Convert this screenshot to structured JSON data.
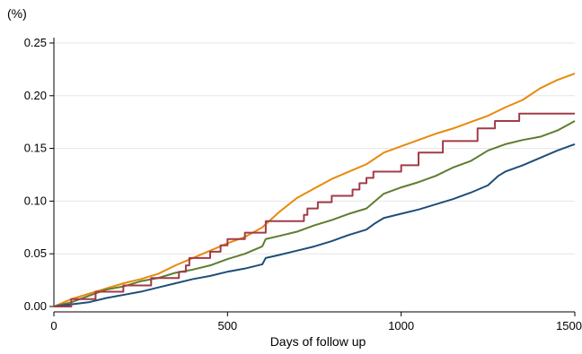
{
  "chart_data": {
    "type": "line",
    "title": "",
    "ylabel": "(%)",
    "xlabel": "Days of follow up",
    "xlim": [
      0,
      1500
    ],
    "ylim": [
      0,
      0.25
    ],
    "x_ticks": [
      0,
      500,
      1000,
      1500
    ],
    "x_tick_labels": [
      "0",
      "500",
      "1000",
      "1500"
    ],
    "y_ticks": [
      0.0,
      0.05,
      0.1,
      0.15,
      0.2,
      0.25
    ],
    "y_tick_labels": [
      "0.00",
      "0.05",
      "0.10",
      "0.15",
      "0.20",
      "0.25"
    ],
    "grid": "horizontal",
    "legend": "none",
    "series": [
      {
        "color": "#E8890C",
        "step": false,
        "points": [
          [
            0,
            0
          ],
          [
            50,
            0.007
          ],
          [
            100,
            0.012
          ],
          [
            150,
            0.017
          ],
          [
            200,
            0.022
          ],
          [
            250,
            0.026
          ],
          [
            300,
            0.031
          ],
          [
            350,
            0.039
          ],
          [
            400,
            0.046
          ],
          [
            450,
            0.053
          ],
          [
            500,
            0.06
          ],
          [
            550,
            0.066
          ],
          [
            600,
            0.075
          ],
          [
            650,
            0.09
          ],
          [
            700,
            0.103
          ],
          [
            750,
            0.112
          ],
          [
            800,
            0.121
          ],
          [
            850,
            0.128
          ],
          [
            900,
            0.135
          ],
          [
            950,
            0.146
          ],
          [
            1000,
            0.152
          ],
          [
            1050,
            0.158
          ],
          [
            1100,
            0.164
          ],
          [
            1150,
            0.169
          ],
          [
            1200,
            0.175
          ],
          [
            1250,
            0.181
          ],
          [
            1300,
            0.189
          ],
          [
            1350,
            0.196
          ],
          [
            1400,
            0.207
          ],
          [
            1450,
            0.215
          ],
          [
            1500,
            0.221
          ]
        ]
      },
      {
        "color": "#5E7D2F",
        "step": false,
        "points": [
          [
            0,
            0
          ],
          [
            50,
            0.004
          ],
          [
            100,
            0.01
          ],
          [
            150,
            0.016
          ],
          [
            200,
            0.019
          ],
          [
            250,
            0.024
          ],
          [
            300,
            0.027
          ],
          [
            350,
            0.032
          ],
          [
            400,
            0.035
          ],
          [
            450,
            0.039
          ],
          [
            500,
            0.045
          ],
          [
            550,
            0.05
          ],
          [
            600,
            0.057
          ],
          [
            610,
            0.064
          ],
          [
            650,
            0.067
          ],
          [
            700,
            0.071
          ],
          [
            750,
            0.077
          ],
          [
            800,
            0.082
          ],
          [
            850,
            0.088
          ],
          [
            900,
            0.093
          ],
          [
            925,
            0.1
          ],
          [
            950,
            0.107
          ],
          [
            1000,
            0.113
          ],
          [
            1050,
            0.118
          ],
          [
            1100,
            0.124
          ],
          [
            1150,
            0.132
          ],
          [
            1200,
            0.138
          ],
          [
            1250,
            0.148
          ],
          [
            1300,
            0.154
          ],
          [
            1350,
            0.158
          ],
          [
            1400,
            0.161
          ],
          [
            1450,
            0.167
          ],
          [
            1500,
            0.176
          ]
        ]
      },
      {
        "color": "#1F4E79",
        "step": false,
        "points": [
          [
            0,
            0
          ],
          [
            50,
            0.002
          ],
          [
            100,
            0.004
          ],
          [
            150,
            0.008
          ],
          [
            200,
            0.011
          ],
          [
            250,
            0.014
          ],
          [
            300,
            0.018
          ],
          [
            350,
            0.022
          ],
          [
            400,
            0.026
          ],
          [
            450,
            0.029
          ],
          [
            500,
            0.033
          ],
          [
            550,
            0.036
          ],
          [
            600,
            0.04
          ],
          [
            610,
            0.046
          ],
          [
            650,
            0.049
          ],
          [
            700,
            0.053
          ],
          [
            750,
            0.057
          ],
          [
            800,
            0.062
          ],
          [
            850,
            0.068
          ],
          [
            900,
            0.073
          ],
          [
            925,
            0.079
          ],
          [
            950,
            0.084
          ],
          [
            1000,
            0.088
          ],
          [
            1050,
            0.092
          ],
          [
            1100,
            0.097
          ],
          [
            1150,
            0.102
          ],
          [
            1200,
            0.108
          ],
          [
            1250,
            0.115
          ],
          [
            1280,
            0.124
          ],
          [
            1300,
            0.128
          ],
          [
            1350,
            0.134
          ],
          [
            1400,
            0.141
          ],
          [
            1450,
            0.148
          ],
          [
            1500,
            0.154
          ]
        ]
      },
      {
        "color": "#A23B48",
        "step": true,
        "points": [
          [
            0,
            0
          ],
          [
            50,
            0.007
          ],
          [
            100,
            0.007
          ],
          [
            120,
            0.014
          ],
          [
            180,
            0.014
          ],
          [
            200,
            0.02
          ],
          [
            260,
            0.02
          ],
          [
            280,
            0.027
          ],
          [
            340,
            0.027
          ],
          [
            360,
            0.033
          ],
          [
            380,
            0.039
          ],
          [
            390,
            0.046
          ],
          [
            430,
            0.046
          ],
          [
            450,
            0.052
          ],
          [
            480,
            0.058
          ],
          [
            500,
            0.064
          ],
          [
            530,
            0.064
          ],
          [
            550,
            0.07
          ],
          [
            610,
            0.07
          ],
          [
            610,
            0.081
          ],
          [
            700,
            0.081
          ],
          [
            720,
            0.087
          ],
          [
            730,
            0.093
          ],
          [
            760,
            0.099
          ],
          [
            780,
            0.099
          ],
          [
            800,
            0.105
          ],
          [
            850,
            0.105
          ],
          [
            860,
            0.111
          ],
          [
            880,
            0.117
          ],
          [
            900,
            0.122
          ],
          [
            920,
            0.128
          ],
          [
            1000,
            0.128
          ],
          [
            1000,
            0.134
          ],
          [
            1050,
            0.134
          ],
          [
            1050,
            0.146
          ],
          [
            1100,
            0.146
          ],
          [
            1120,
            0.157
          ],
          [
            1200,
            0.157
          ],
          [
            1220,
            0.169
          ],
          [
            1260,
            0.169
          ],
          [
            1270,
            0.176
          ],
          [
            1330,
            0.176
          ],
          [
            1340,
            0.183
          ],
          [
            1500,
            0.183
          ]
        ]
      }
    ]
  }
}
